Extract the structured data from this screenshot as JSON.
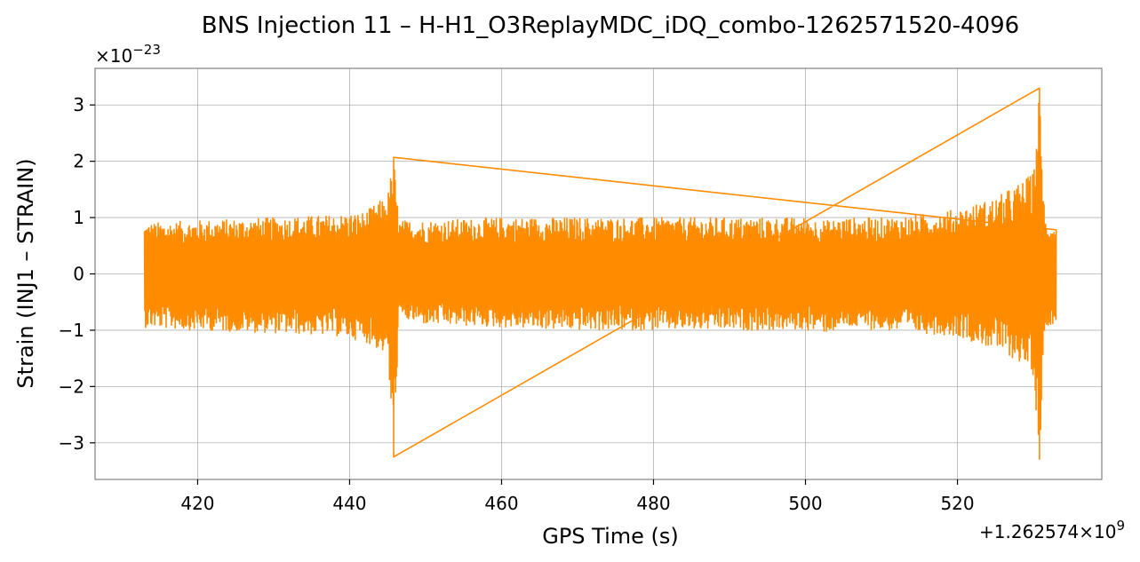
{
  "chart_data": {
    "type": "line",
    "title": "BNS Injection 11 – H-H1_O3ReplayMDC_iDQ_combo-1262571520-4096",
    "xlabel": "GPS Time (s)",
    "ylabel": "Strain (INJ1 – STRAIN)",
    "x_offset_label": "+1.262574×10",
    "x_offset_exponent": "9",
    "y_scale_label": "×10",
    "y_scale_exponent": "−23",
    "xlim": [
      406.5,
      539
    ],
    "ylim": [
      -3.65,
      3.65
    ],
    "x_ticks": [
      420,
      440,
      460,
      480,
      500,
      520
    ],
    "x_tick_labels": [
      "420",
      "440",
      "460",
      "480",
      "500",
      "520"
    ],
    "y_ticks": [
      -3,
      -2,
      -1,
      0,
      1,
      2,
      3
    ],
    "y_tick_labels": [
      "−3",
      "−2",
      "−1",
      "0",
      "1",
      "2",
      "3"
    ],
    "grid": true,
    "series": [
      {
        "color": "#ff8c00",
        "x_range": [
          413,
          533
        ],
        "envelope": {
          "x": [
            413,
            420,
            430,
            438,
            442,
            445,
            445.8,
            446.5,
            450,
            460,
            470,
            480,
            490,
            500,
            503,
            505,
            510,
            515,
            520,
            525,
            528,
            530,
            530.8,
            531.5,
            533
          ],
          "upper": [
            0.9,
            0.95,
            1.0,
            1.05,
            1.1,
            1.4,
            2.07,
            0.95,
            0.95,
            1.0,
            1.0,
            1.0,
            1.0,
            1.0,
            0.95,
            1.0,
            1.0,
            1.05,
            1.15,
            1.35,
            1.6,
            1.8,
            3.3,
            1.0,
            0.85
          ],
          "lower": [
            -0.95,
            -1.0,
            -1.05,
            -1.1,
            -1.2,
            -1.45,
            -3.25,
            -0.8,
            -0.9,
            -0.95,
            -1.0,
            -1.0,
            -1.0,
            -1.0,
            -1.05,
            -0.95,
            -1.0,
            -1.05,
            -1.1,
            -1.35,
            -1.55,
            -1.8,
            -3.3,
            -0.95,
            -0.85
          ]
        }
      }
    ]
  }
}
